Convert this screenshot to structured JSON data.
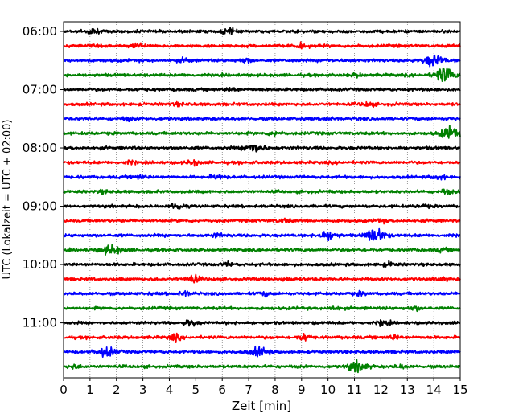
{
  "chart_data": {
    "type": "line",
    "title": "",
    "xlabel": "Zeit  [min]",
    "ylabel": "UTC (Lokalzeit = UTC + 02:00)",
    "xlim": [
      0,
      15
    ],
    "x_ticks": [
      "0",
      "1",
      "2",
      "3",
      "4",
      "5",
      "6",
      "7",
      "8",
      "9",
      "10",
      "11",
      "12",
      "13",
      "14",
      "15"
    ],
    "y_ticks": [
      "06:00",
      "07:00",
      "08:00",
      "09:00",
      "10:00",
      "11:00"
    ],
    "trace_interval_min": 15,
    "first_trace": "06:00",
    "grid": "vertical dotted",
    "colors_cycle": [
      "#000000",
      "#ff0000",
      "#0000ff",
      "#008000"
    ],
    "traces": [
      {
        "start": "06:00",
        "color": "#000000",
        "events": [
          {
            "t": 1.1,
            "amp": 0.55
          },
          {
            "t": 6.25,
            "amp": 0.6
          }
        ]
      },
      {
        "start": "06:15",
        "color": "#ff0000",
        "events": [
          {
            "t": 2.8,
            "amp": 0.5
          },
          {
            "t": 9.0,
            "amp": 0.4
          }
        ]
      },
      {
        "start": "06:30",
        "color": "#0000ff",
        "events": [
          {
            "t": 4.6,
            "amp": 0.35
          },
          {
            "t": 6.9,
            "amp": 0.45
          },
          {
            "t": 14.0,
            "amp": 1.2
          }
        ]
      },
      {
        "start": "06:45",
        "color": "#008000",
        "events": [
          {
            "t": 14.4,
            "amp": 1.6
          },
          {
            "t": 11.1,
            "amp": 0.3
          }
        ]
      },
      {
        "start": "07:00",
        "color": "#000000",
        "events": [
          {
            "t": 6.4,
            "amp": 0.4
          }
        ]
      },
      {
        "start": "07:15",
        "color": "#ff0000",
        "events": [
          {
            "t": 11.5,
            "amp": 0.45
          },
          {
            "t": 4.3,
            "amp": 0.25
          }
        ]
      },
      {
        "start": "07:30",
        "color": "#0000ff",
        "events": [
          {
            "t": 2.4,
            "amp": 0.3
          },
          {
            "t": 10.0,
            "amp": 0.25
          }
        ]
      },
      {
        "start": "07:45",
        "color": "#008000",
        "events": [
          {
            "t": 8.0,
            "amp": 0.45
          },
          {
            "t": 14.6,
            "amp": 1.2
          }
        ]
      },
      {
        "start": "08:00",
        "color": "#000000",
        "events": [
          {
            "t": 7.2,
            "amp": 0.9
          }
        ]
      },
      {
        "start": "08:15",
        "color": "#ff0000",
        "events": [
          {
            "t": 4.9,
            "amp": 0.45
          },
          {
            "t": 2.5,
            "amp": 0.25
          }
        ]
      },
      {
        "start": "08:30",
        "color": "#0000ff",
        "events": [
          {
            "t": 2.9,
            "amp": 0.4
          },
          {
            "t": 5.8,
            "amp": 0.45
          },
          {
            "t": 14.2,
            "amp": 0.45
          }
        ]
      },
      {
        "start": "08:45",
        "color": "#008000",
        "events": [
          {
            "t": 14.5,
            "amp": 0.4
          },
          {
            "t": 1.5,
            "amp": 0.25
          }
        ]
      },
      {
        "start": "09:00",
        "color": "#000000",
        "events": [
          {
            "t": 4.3,
            "amp": 0.75
          },
          {
            "t": 13.6,
            "amp": 0.25
          }
        ]
      },
      {
        "start": "09:15",
        "color": "#ff0000",
        "events": [
          {
            "t": 8.4,
            "amp": 0.4
          },
          {
            "t": 12.0,
            "amp": 0.25
          }
        ]
      },
      {
        "start": "09:30",
        "color": "#0000ff",
        "events": [
          {
            "t": 10.0,
            "amp": 0.85
          },
          {
            "t": 11.8,
            "amp": 1.5
          },
          {
            "t": 5.8,
            "amp": 0.35
          }
        ]
      },
      {
        "start": "09:45",
        "color": "#008000",
        "events": [
          {
            "t": 1.8,
            "amp": 0.9
          },
          {
            "t": 14.3,
            "amp": 0.3
          }
        ]
      },
      {
        "start": "10:00",
        "color": "#000000",
        "events": [
          {
            "t": 6.2,
            "amp": 0.35
          },
          {
            "t": 12.3,
            "amp": 0.4
          }
        ]
      },
      {
        "start": "10:15",
        "color": "#ff0000",
        "events": [
          {
            "t": 4.9,
            "amp": 0.8
          },
          {
            "t": 8.4,
            "amp": 0.35
          },
          {
            "t": 14.3,
            "amp": 0.35
          }
        ]
      },
      {
        "start": "10:30",
        "color": "#0000ff",
        "events": [
          {
            "t": 4.6,
            "amp": 0.4
          },
          {
            "t": 7.6,
            "amp": 0.35
          },
          {
            "t": 11.2,
            "amp": 0.3
          }
        ]
      },
      {
        "start": "10:45",
        "color": "#008000",
        "events": [
          {
            "t": 10.2,
            "amp": 0.4
          },
          {
            "t": 13.3,
            "amp": 0.35
          }
        ]
      },
      {
        "start": "11:00",
        "color": "#000000",
        "events": [
          {
            "t": 4.8,
            "amp": 0.6
          },
          {
            "t": 12.1,
            "amp": 0.5
          }
        ]
      },
      {
        "start": "11:15",
        "color": "#ff0000",
        "events": [
          {
            "t": 4.2,
            "amp": 0.6
          },
          {
            "t": 9.1,
            "amp": 0.75
          },
          {
            "t": 12.5,
            "amp": 0.4
          }
        ]
      },
      {
        "start": "11:30",
        "color": "#0000ff",
        "events": [
          {
            "t": 1.6,
            "amp": 0.9
          },
          {
            "t": 7.4,
            "amp": 0.85
          }
        ]
      },
      {
        "start": "11:45",
        "color": "#008000",
        "events": [
          {
            "t": 11.1,
            "amp": 1.0
          },
          {
            "t": 0.4,
            "amp": 0.35
          },
          {
            "t": 12.8,
            "amp": 0.3
          }
        ]
      }
    ]
  }
}
